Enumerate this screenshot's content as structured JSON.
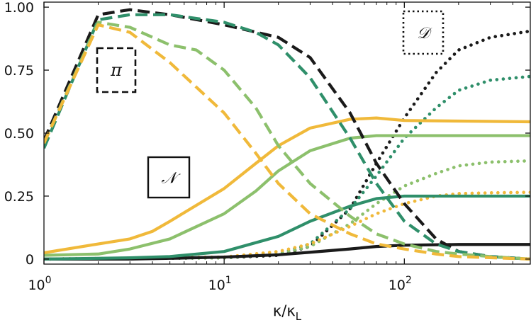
{
  "chart_data": {
    "type": "line",
    "xlabel": "κ/κL",
    "x_scale": "log",
    "xlim": [
      1,
      500
    ],
    "ylim": [
      -0.02,
      1.02
    ],
    "grid": false,
    "x_ticks": [
      {
        "value": 1,
        "base": "10",
        "exp": "0"
      },
      {
        "value": 10,
        "base": "10",
        "exp": "1"
      },
      {
        "value": 100,
        "base": "10",
        "exp": "2"
      }
    ],
    "y_ticks": [
      {
        "value": 0,
        "label": "0"
      },
      {
        "value": 0.25,
        "label": "0.25"
      },
      {
        "value": 0.5,
        "label": "0.50"
      },
      {
        "value": 0.75,
        "label": "0.75"
      },
      {
        "value": 1.0,
        "label": "1.00"
      }
    ],
    "colors": {
      "black": "#1a1a1a",
      "green": "#2f8f6a",
      "light_green": "#8cc06c",
      "yellow": "#f0b93a"
    },
    "legend": [
      {
        "symbol": "π",
        "style": "dashed"
      },
      {
        "symbol": "𝒩",
        "style": "solid"
      },
      {
        "symbol": "𝒟",
        "style": "dotted"
      }
    ],
    "series": [
      {
        "color": "black",
        "style": "dashed",
        "points": [
          [
            1,
            0.47
          ],
          [
            2,
            0.97
          ],
          [
            3,
            0.99
          ],
          [
            5,
            0.97
          ],
          [
            10,
            0.93
          ],
          [
            20,
            0.88
          ],
          [
            30,
            0.8
          ],
          [
            50,
            0.58
          ],
          [
            70,
            0.38
          ],
          [
            100,
            0.22
          ],
          [
            150,
            0.08
          ],
          [
            200,
            0.03
          ],
          [
            300,
            0.01
          ],
          [
            500,
            0.0
          ]
        ]
      },
      {
        "color": "green",
        "style": "dashed",
        "points": [
          [
            1,
            0.44
          ],
          [
            2,
            0.95
          ],
          [
            3,
            0.97
          ],
          [
            5,
            0.97
          ],
          [
            10,
            0.94
          ],
          [
            15,
            0.9
          ],
          [
            20,
            0.85
          ],
          [
            30,
            0.72
          ],
          [
            50,
            0.48
          ],
          [
            70,
            0.3
          ],
          [
            100,
            0.15
          ],
          [
            150,
            0.06
          ],
          [
            200,
            0.03
          ],
          [
            300,
            0.01
          ],
          [
            500,
            0.0
          ]
        ]
      },
      {
        "color": "light_green",
        "style": "dashed",
        "points": [
          [
            1,
            0.46
          ],
          [
            2,
            0.94
          ],
          [
            3,
            0.92
          ],
          [
            5,
            0.85
          ],
          [
            7,
            0.83
          ],
          [
            10,
            0.75
          ],
          [
            15,
            0.6
          ],
          [
            20,
            0.45
          ],
          [
            30,
            0.3
          ],
          [
            50,
            0.17
          ],
          [
            70,
            0.1
          ],
          [
            100,
            0.06
          ],
          [
            150,
            0.03
          ],
          [
            200,
            0.02
          ],
          [
            300,
            0.01
          ],
          [
            500,
            0.0
          ]
        ]
      },
      {
        "color": "yellow",
        "style": "dashed",
        "points": [
          [
            1,
            0.46
          ],
          [
            2,
            0.93
          ],
          [
            3,
            0.9
          ],
          [
            5,
            0.78
          ],
          [
            10,
            0.58
          ],
          [
            15,
            0.42
          ],
          [
            20,
            0.3
          ],
          [
            30,
            0.18
          ],
          [
            50,
            0.1
          ],
          [
            70,
            0.06
          ],
          [
            100,
            0.04
          ],
          [
            150,
            0.02
          ],
          [
            200,
            0.01
          ],
          [
            500,
            0.0
          ]
        ]
      },
      {
        "color": "black",
        "style": "solid",
        "points": [
          [
            1,
            0.0
          ],
          [
            3,
            0.0
          ],
          [
            5,
            0.003
          ],
          [
            10,
            0.008
          ],
          [
            20,
            0.017
          ],
          [
            30,
            0.027
          ],
          [
            50,
            0.04
          ],
          [
            70,
            0.05
          ],
          [
            100,
            0.055
          ],
          [
            200,
            0.058
          ],
          [
            500,
            0.058
          ]
        ]
      },
      {
        "color": "green",
        "style": "solid",
        "points": [
          [
            1,
            0.0
          ],
          [
            3,
            0.005
          ],
          [
            5,
            0.01
          ],
          [
            10,
            0.03
          ],
          [
            20,
            0.09
          ],
          [
            30,
            0.15
          ],
          [
            50,
            0.21
          ],
          [
            70,
            0.24
          ],
          [
            100,
            0.25
          ],
          [
            200,
            0.25
          ],
          [
            500,
            0.25
          ]
        ]
      },
      {
        "color": "light_green",
        "style": "solid",
        "points": [
          [
            1,
            0.015
          ],
          [
            2,
            0.02
          ],
          [
            3,
            0.04
          ],
          [
            5,
            0.08
          ],
          [
            10,
            0.18
          ],
          [
            15,
            0.27
          ],
          [
            20,
            0.35
          ],
          [
            30,
            0.43
          ],
          [
            50,
            0.48
          ],
          [
            70,
            0.49
          ],
          [
            100,
            0.49
          ],
          [
            500,
            0.49
          ]
        ]
      },
      {
        "color": "yellow",
        "style": "solid",
        "points": [
          [
            1,
            0.025
          ],
          [
            2,
            0.06
          ],
          [
            3,
            0.08
          ],
          [
            4,
            0.11
          ],
          [
            5,
            0.15
          ],
          [
            10,
            0.28
          ],
          [
            15,
            0.38
          ],
          [
            20,
            0.45
          ],
          [
            30,
            0.52
          ],
          [
            50,
            0.555
          ],
          [
            70,
            0.56
          ],
          [
            100,
            0.55
          ],
          [
            500,
            0.545
          ]
        ]
      },
      {
        "color": "black",
        "style": "dotted",
        "points": [
          [
            1,
            0.0
          ],
          [
            10,
            0.005
          ],
          [
            20,
            0.015
          ],
          [
            30,
            0.05
          ],
          [
            50,
            0.2
          ],
          [
            70,
            0.38
          ],
          [
            100,
            0.56
          ],
          [
            150,
            0.74
          ],
          [
            200,
            0.83
          ],
          [
            300,
            0.88
          ],
          [
            500,
            0.905
          ]
        ]
      },
      {
        "color": "green",
        "style": "dotted",
        "points": [
          [
            1,
            0.0
          ],
          [
            10,
            0.005
          ],
          [
            20,
            0.02
          ],
          [
            30,
            0.06
          ],
          [
            50,
            0.2
          ],
          [
            70,
            0.33
          ],
          [
            100,
            0.48
          ],
          [
            150,
            0.6
          ],
          [
            200,
            0.67
          ],
          [
            300,
            0.71
          ],
          [
            500,
            0.725
          ]
        ]
      },
      {
        "color": "light_green",
        "style": "dotted",
        "points": [
          [
            1,
            0.0
          ],
          [
            10,
            0.005
          ],
          [
            20,
            0.02
          ],
          [
            30,
            0.05
          ],
          [
            50,
            0.14
          ],
          [
            70,
            0.22
          ],
          [
            100,
            0.29
          ],
          [
            150,
            0.34
          ],
          [
            200,
            0.37
          ],
          [
            300,
            0.385
          ],
          [
            500,
            0.39
          ]
        ]
      },
      {
        "color": "yellow",
        "style": "dotted",
        "points": [
          [
            1,
            0.0
          ],
          [
            10,
            0.008
          ],
          [
            20,
            0.03
          ],
          [
            30,
            0.06
          ],
          [
            50,
            0.13
          ],
          [
            70,
            0.18
          ],
          [
            100,
            0.22
          ],
          [
            150,
            0.25
          ],
          [
            200,
            0.26
          ],
          [
            300,
            0.263
          ],
          [
            500,
            0.265
          ]
        ]
      }
    ]
  }
}
